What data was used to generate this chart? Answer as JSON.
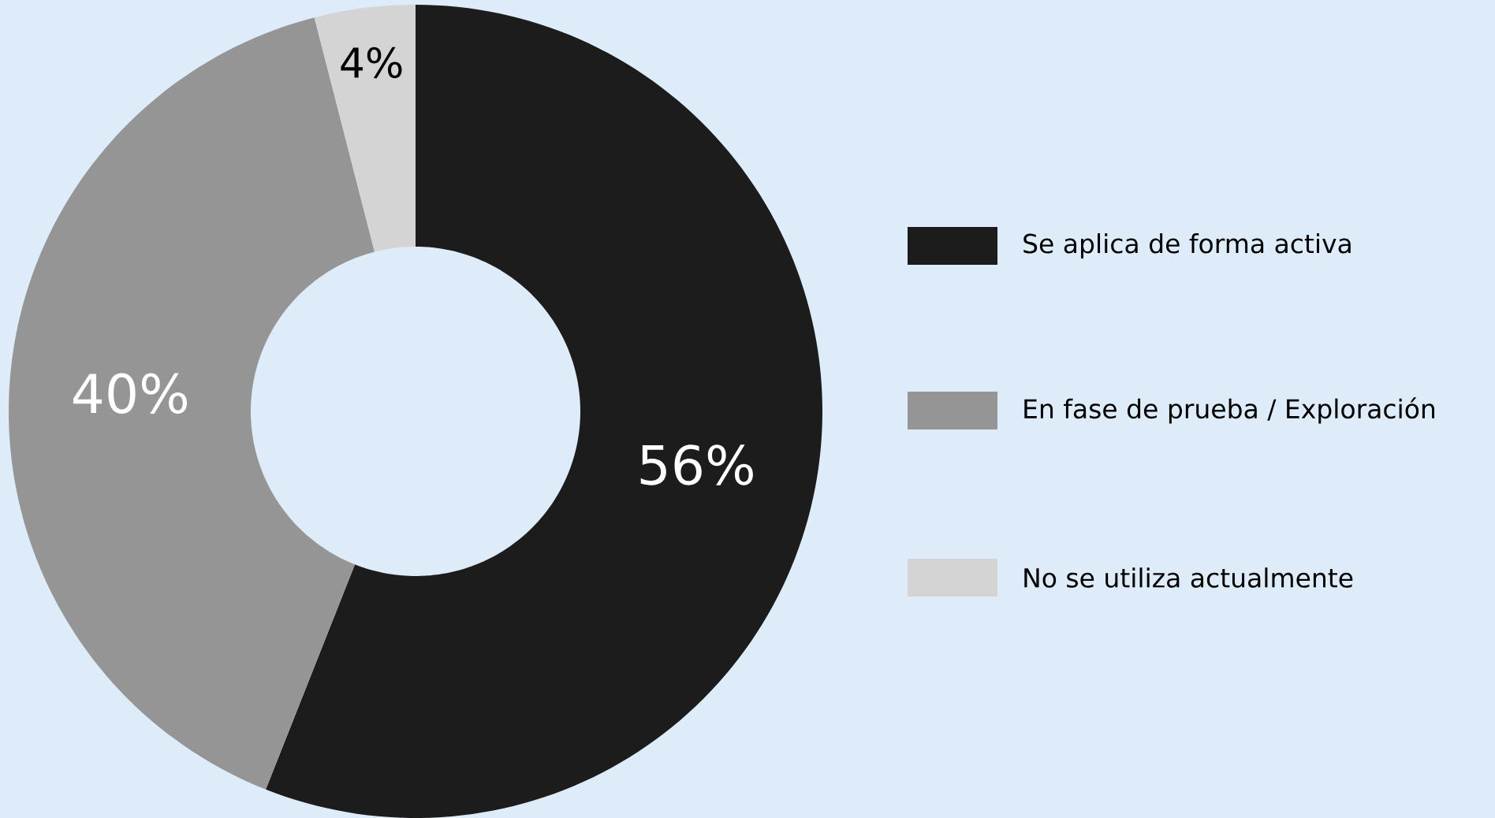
{
  "chart_data": {
    "type": "donut",
    "categories": [
      "Se aplica de forma activa",
      "En fase de prueba / Exploración",
      "No se utiliza actualmente"
    ],
    "values": [
      56,
      40,
      4
    ],
    "value_labels": [
      "56%",
      "40%",
      "4%"
    ],
    "colors": [
      "#1c1c1c",
      "#959595",
      "#d4d4d4"
    ],
    "legend": "right"
  }
}
